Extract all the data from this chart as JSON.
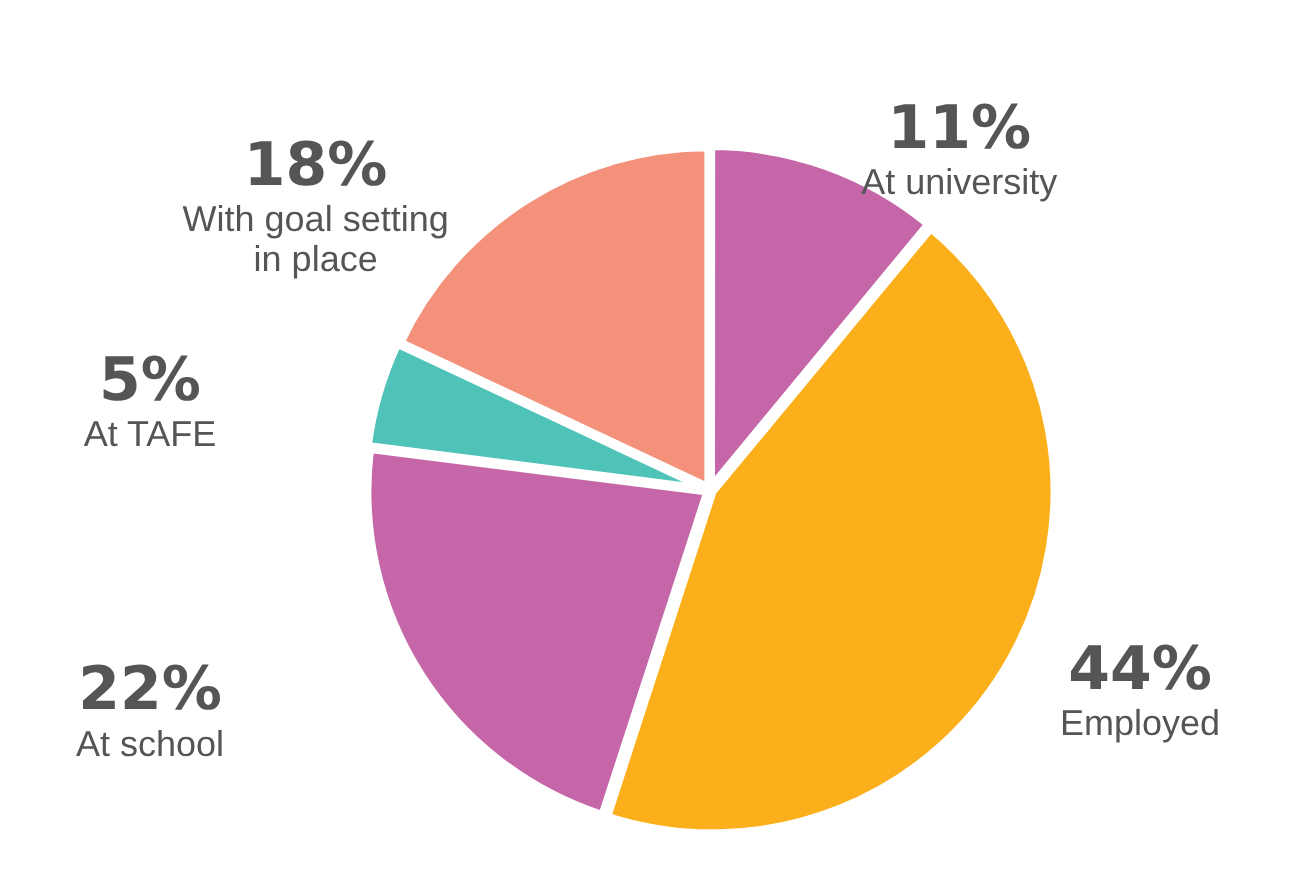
{
  "chart_data": {
    "type": "pie",
    "categories": [
      "At university",
      "Employed",
      "At school",
      "At TAFE",
      "With goal setting in place"
    ],
    "values": [
      11,
      44,
      22,
      5,
      18
    ],
    "colors": [
      "#c466a8",
      "#fbaf1a",
      "#c466a8",
      "#4fc3b8",
      "#f4917a"
    ],
    "value_labels": [
      "11%",
      "44%",
      "22%",
      "5%",
      "18%"
    ]
  }
}
